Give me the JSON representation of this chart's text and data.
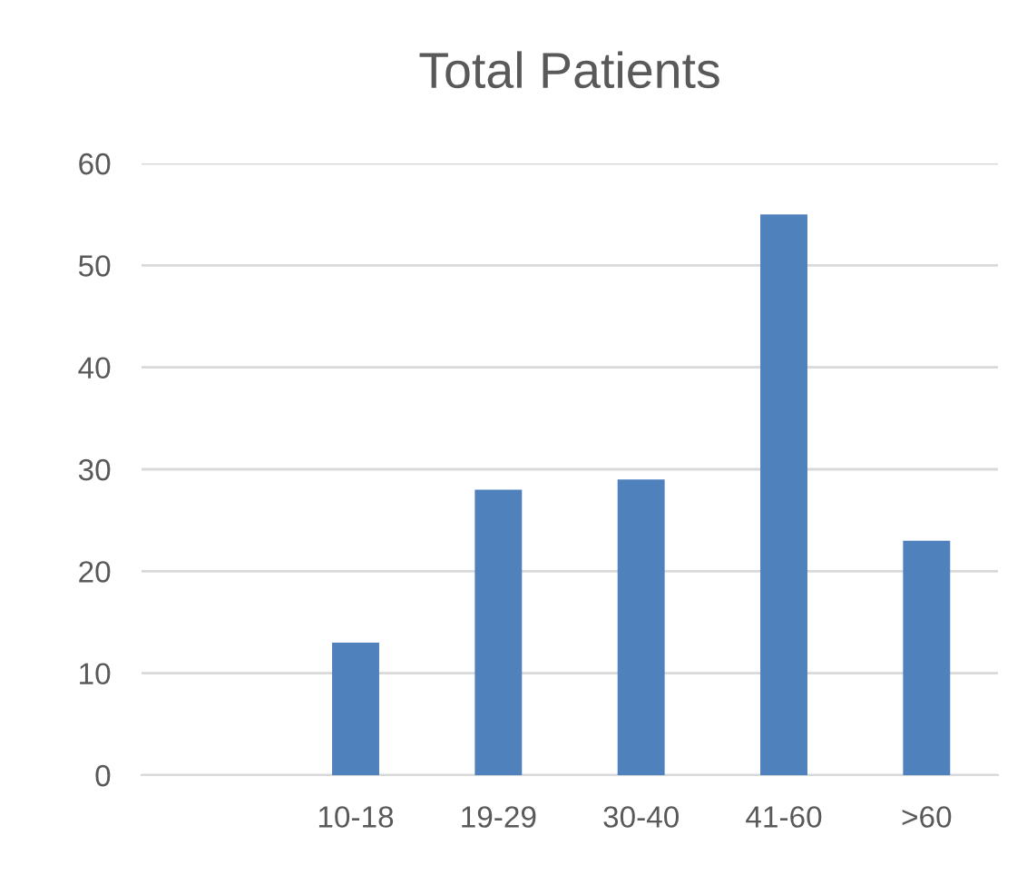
{
  "chart_data": {
    "type": "bar",
    "title": "Total Patients",
    "categories": [
      null,
      "10-18",
      "19-29",
      "30-40",
      "41-60",
      ">60"
    ],
    "values": [
      null,
      13,
      28,
      29,
      55,
      23
    ],
    "color": "#4f81bd",
    "ylim": [
      0,
      60
    ],
    "yticks": [
      0,
      10,
      20,
      30,
      40,
      50,
      60
    ],
    "grid": "y",
    "legend": false
  }
}
